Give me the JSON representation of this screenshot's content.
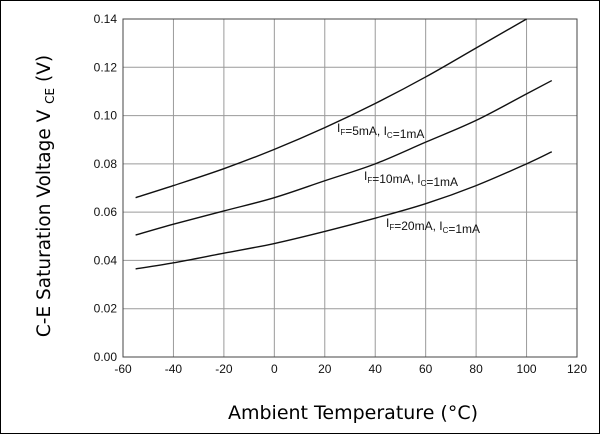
{
  "chart_data": {
    "type": "line",
    "title": "",
    "xlabel": "Ambient Temperature (°C)",
    "ylabel": {
      "main": "C-E Saturation Voltage V",
      "sub": "CE",
      "unit": " (V)"
    },
    "xlim": [
      -60,
      120
    ],
    "ylim": [
      0,
      0.14
    ],
    "xticks": [
      -60,
      -40,
      -20,
      0,
      20,
      40,
      60,
      80,
      100,
      120
    ],
    "xtick_labels": [
      "-60",
      "-40",
      "-20",
      "0",
      "20",
      "40",
      "60",
      "80",
      "100",
      "120"
    ],
    "yticks": [
      0,
      0.02,
      0.04,
      0.06,
      0.08,
      0.1,
      0.12,
      0.14
    ],
    "ytick_labels": [
      "0.00",
      "0.02",
      "0.04",
      "0.06",
      "0.08",
      "0.10",
      "0.12",
      "0.14"
    ],
    "grid": true,
    "series": [
      {
        "name": "IF=5mA, IC=1mA",
        "label_parts": [
          [
            "I",
            ""
          ],
          [
            "F",
            "sub"
          ],
          [
            "=5mA, I",
            ""
          ],
          [
            "C",
            "sub"
          ],
          [
            "=1mA",
            ""
          ]
        ],
        "x": [
          -55,
          -40,
          -20,
          0,
          20,
          40,
          60,
          80,
          100
        ],
        "y": [
          0.066,
          0.071,
          0.078,
          0.086,
          0.095,
          0.105,
          0.116,
          0.128,
          0.14
        ]
      },
      {
        "name": "IF=10mA, IC=1mA",
        "label_parts": [
          [
            "I",
            ""
          ],
          [
            "F",
            "sub"
          ],
          [
            "=10mA, I",
            ""
          ],
          [
            "C",
            "sub"
          ],
          [
            "=1mA",
            ""
          ]
        ],
        "x": [
          -55,
          -40,
          -20,
          0,
          20,
          40,
          60,
          80,
          100,
          110
        ],
        "y": [
          0.0505,
          0.055,
          0.0605,
          0.066,
          0.073,
          0.08,
          0.089,
          0.098,
          0.109,
          0.1145
        ]
      },
      {
        "name": "IF=20mA, IC=1mA",
        "label_parts": [
          [
            "I",
            ""
          ],
          [
            "F",
            "sub"
          ],
          [
            "=20mA, I",
            ""
          ],
          [
            "C",
            "sub"
          ],
          [
            "=1mA",
            ""
          ]
        ],
        "x": [
          -55,
          -40,
          -20,
          0,
          20,
          40,
          60,
          80,
          100,
          110
        ],
        "y": [
          0.0365,
          0.039,
          0.043,
          0.047,
          0.052,
          0.0575,
          0.0635,
          0.071,
          0.08,
          0.085
        ]
      }
    ]
  }
}
